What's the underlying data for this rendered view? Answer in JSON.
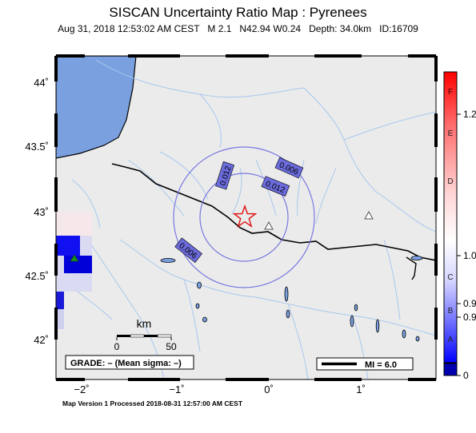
{
  "map": {
    "title": "SISCAN Uncertainty Ratio Map : Pyrenees",
    "subtitle": "Aug 31, 2018 12:53:02 AM CEST   M 2.1   N42.94 W0.24   Depth: 34.0km   ID:16709",
    "footer": "Map Version 1 Processed 2018-08-31 12:57:00 AM CEST",
    "lat_ticks": [
      "44˚",
      "43.5˚",
      "43˚",
      "42.5˚",
      "42˚"
    ],
    "lon_ticks": [
      "−2˚",
      "−1˚",
      "0˚",
      "1˚"
    ],
    "contours": [
      "0.012",
      "0.012",
      "0.006",
      "0.006"
    ],
    "scale_bar": {
      "unit": "km",
      "min": "0",
      "max": "50"
    },
    "grade_box": "GRADE: – (Mean sigma: –)",
    "mi_legend": "MI = 6.0",
    "epicenter": {
      "lat": 42.94,
      "lon": -0.24,
      "label": "star"
    },
    "stations": [
      {
        "type": "triangle",
        "color": "#ffffff"
      },
      {
        "type": "triangle",
        "color": "#ffffff"
      },
      {
        "type": "triangle",
        "color": "#1a8c1a"
      }
    ]
  },
  "colorbar": {
    "grade_letters": [
      "F",
      "E",
      "D",
      "C",
      "B",
      "A"
    ],
    "values": [
      "1.2",
      "1.0",
      "0.9",
      "0.9",
      "0"
    ],
    "colors": {
      "top": "#ff0000",
      "mid": "#ffffff",
      "bottom": "#0000ff",
      "cap": "#0000b0"
    }
  }
}
